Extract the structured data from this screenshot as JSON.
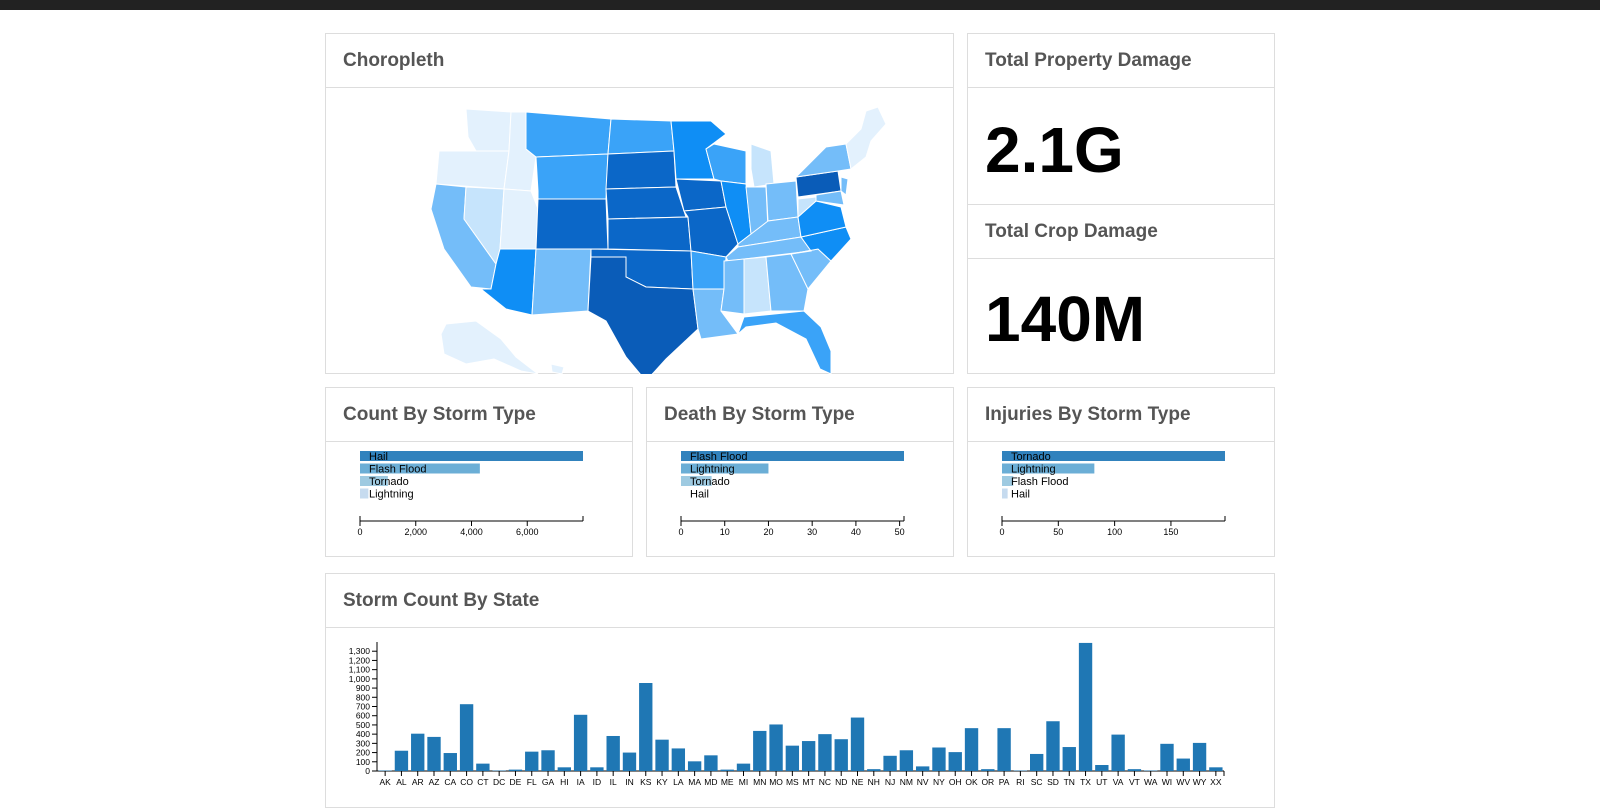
{
  "colors": {
    "topbar": "#222222",
    "bar": "#1f77b4",
    "hbar_scale": [
      "#3182bd",
      "#6baed6",
      "#9ecae1",
      "#c6dbef"
    ],
    "map_scale": [
      "#e3f1fd",
      "#c6e4fc",
      "#74bdf9",
      "#3aa3f8",
      "#0f8ef5",
      "#0b67c8",
      "#0a5cb8"
    ]
  },
  "choropleth": {
    "title": "Choropleth"
  },
  "property_damage": {
    "title": "Total Property Damage",
    "value": "2.1G"
  },
  "crop_damage": {
    "title": "Total Crop Damage",
    "value": "140M"
  },
  "chart_data": [
    {
      "id": "count",
      "type": "bar",
      "orientation": "horizontal",
      "title": "Count By Storm Type",
      "categories": [
        "Hail",
        "Flash Flood",
        "Tornado",
        "Lightning"
      ],
      "values": [
        8000,
        4300,
        1000,
        300
      ],
      "xlim": [
        0,
        8000
      ],
      "ticks": [
        0,
        2000,
        4000,
        6000
      ],
      "tick_labels": [
        "0",
        "2,000",
        "4,000",
        "6,000"
      ]
    },
    {
      "id": "death",
      "type": "bar",
      "orientation": "horizontal",
      "title": "Death By Storm Type",
      "categories": [
        "Flash Flood",
        "Lightning",
        "Tornado",
        "Hail"
      ],
      "values": [
        51,
        20,
        7,
        0
      ],
      "xlim": [
        0,
        51
      ],
      "ticks": [
        0,
        10,
        20,
        30,
        40,
        50
      ],
      "tick_labels": [
        "0",
        "10",
        "20",
        "30",
        "40",
        "50"
      ]
    },
    {
      "id": "injuries",
      "type": "bar",
      "orientation": "horizontal",
      "title": "Injuries By Storm Type",
      "categories": [
        "Tornado",
        "Lightning",
        "Flash Flood",
        "Hail"
      ],
      "values": [
        198,
        82,
        10,
        5
      ],
      "xlim": [
        0,
        198
      ],
      "ticks": [
        0,
        50,
        100,
        150
      ],
      "tick_labels": [
        "0",
        "50",
        "100",
        "150"
      ]
    },
    {
      "id": "state",
      "type": "bar",
      "title": "Storm Count By State",
      "categories": [
        "AK",
        "AL",
        "AR",
        "AZ",
        "CA",
        "CO",
        "CT",
        "DC",
        "DE",
        "FL",
        "GA",
        "HI",
        "IA",
        "ID",
        "IL",
        "IN",
        "KS",
        "KY",
        "LA",
        "MA",
        "MD",
        "ME",
        "MI",
        "MN",
        "MO",
        "MS",
        "MT",
        "NC",
        "ND",
        "NE",
        "NH",
        "NJ",
        "NM",
        "NV",
        "NY",
        "OH",
        "OK",
        "OR",
        "PA",
        "RI",
        "SC",
        "SD",
        "TN",
        "TX",
        "UT",
        "VA",
        "VT",
        "WA",
        "WI",
        "WV",
        "WY",
        "XX"
      ],
      "values": [
        5,
        220,
        405,
        370,
        195,
        725,
        80,
        5,
        15,
        210,
        225,
        40,
        610,
        40,
        380,
        200,
        955,
        340,
        245,
        105,
        170,
        15,
        80,
        435,
        505,
        275,
        325,
        400,
        345,
        580,
        20,
        165,
        225,
        50,
        255,
        205,
        465,
        20,
        465,
        5,
        185,
        540,
        260,
        1390,
        65,
        395,
        20,
        5,
        295,
        135,
        305,
        40
      ],
      "ylim": [
        0,
        1400
      ],
      "yticks": [
        0,
        100,
        200,
        300,
        400,
        500,
        600,
        700,
        800,
        900,
        1000,
        1100,
        1200,
        1300
      ],
      "ytick_labels": [
        "0",
        "100",
        "200",
        "300",
        "400",
        "500",
        "600",
        "700",
        "800",
        "900",
        "1,000",
        "1,100",
        "1,200",
        "1,300"
      ]
    }
  ]
}
